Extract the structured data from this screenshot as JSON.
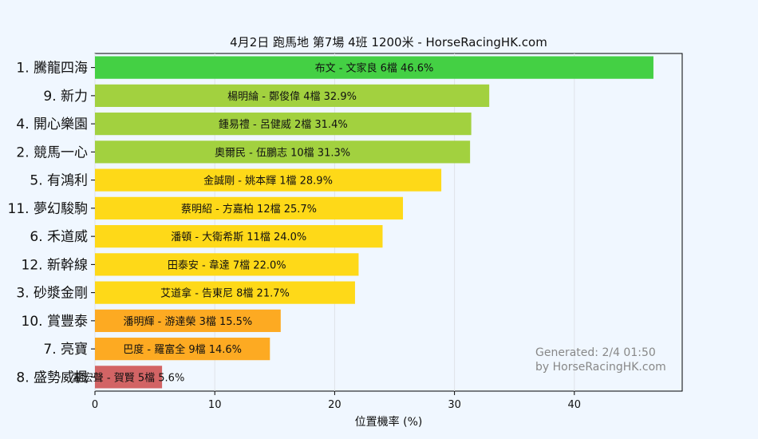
{
  "chart_data": {
    "type": "bar",
    "orientation": "horizontal",
    "title": "4月2日  跑馬地  第7場  4班  1200米 - HorseRacingHK.com",
    "xlabel": "位置機率 (%)",
    "ylabel": "",
    "xlim": [
      0,
      49
    ],
    "xticks": [
      "0",
      "10",
      "20",
      "30",
      "40"
    ],
    "grid": "vertical",
    "categories": [
      "1. 騰龍四海",
      "9. 新力",
      "4. 開心樂園",
      "2. 競馬一心",
      "5. 有鴻利",
      "11. 夢幻駿駒",
      "6. 禾道威",
      "12. 新幹線",
      "3. 砂漿金剛",
      "10. 賞豐泰",
      "7. 亮寶",
      "8. 盛勢威楓"
    ],
    "values": [
      46.6,
      32.9,
      31.4,
      31.3,
      28.9,
      25.7,
      24.0,
      22.0,
      21.7,
      15.5,
      14.6,
      5.6
    ],
    "labels": [
      "布文 - 文家良 6檔  46.6%",
      "楊明綸 - 鄭俊偉 4檔  32.9%",
      "鍾易禮 - 呂健威 2檔  31.4%",
      "奧爾民 - 伍鵬志 10檔  31.3%",
      "金誠剛 - 姚本輝 1檔  28.9%",
      "蔡明紹 - 方嘉柏 12檔  25.7%",
      "潘頓 - 大衛希斯 11檔  24.0%",
      "田泰安 - 韋達 7檔  22.0%",
      "艾道拿 - 告東尼 8檔  21.7%",
      "潘明輝 - 游達榮 3檔  15.5%",
      "巴度 - 羅富全 9檔  14.6%",
      "霍宏聲 - 賀賢 5檔  5.6%"
    ],
    "colors": [
      "#44d044",
      "#a2d13f",
      "#a2d13f",
      "#a2d13f",
      "#fed918",
      "#fed918",
      "#fed918",
      "#fed918",
      "#fed918",
      "#fdaa22",
      "#fdaa22",
      "#d26465"
    ],
    "annotation": [
      "Generated: 2/4 01:50",
      "by HorseRacingHK.com"
    ]
  }
}
